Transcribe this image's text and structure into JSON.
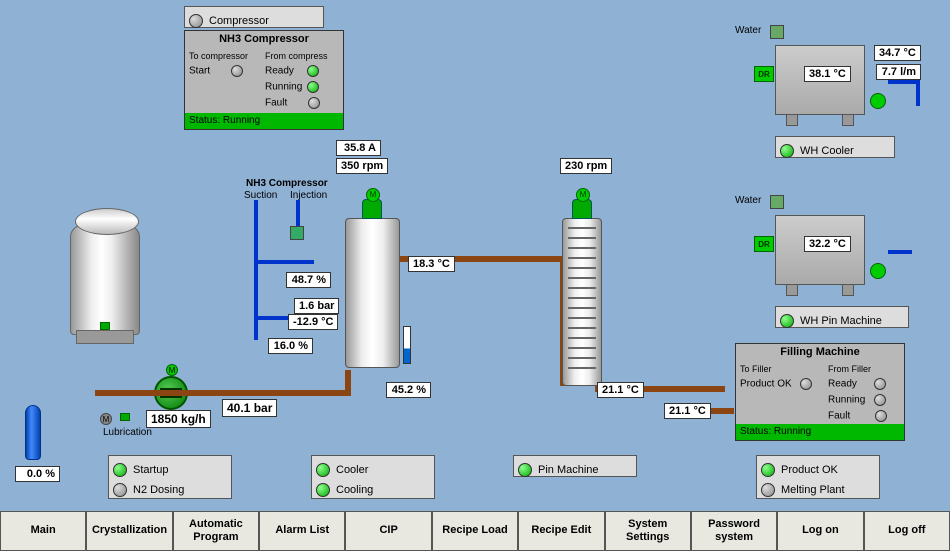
{
  "colors": {
    "bg": "#8fb1d4",
    "brown": "#8b4513",
    "blue": "#0033cc",
    "green_led": "#00b800"
  },
  "compressor_btn": {
    "label": "Compressor"
  },
  "nh3_panel": {
    "title": "NH3 Compressor",
    "left_header": "To compressor",
    "right_header": "From compress",
    "start": "Start",
    "ready": "Ready",
    "running": "Running",
    "fault": "Fault",
    "status": "Status: Running"
  },
  "nh3_conn": {
    "title": "NH3 Compressor",
    "suction": "Suction",
    "injection": "Injection"
  },
  "readouts": {
    "r_358A": "35.8 A",
    "r_350rpm": "350 rpm",
    "r_230rpm": "230 rpm",
    "r_487pct": "48.7 %",
    "r_16bar": "1.6 bar",
    "r_n129c": "-12.9 °C",
    "r_160pct": "16.0 %",
    "r_183c": "18.3 °C",
    "r_452pct": "45.2 %",
    "r_211c_a": "21.1 °C",
    "r_211c_b": "21.1 °C",
    "r_401bar": "40.1 bar",
    "r_1850kgh": "1850 kg/h",
    "r_00pct": "0.0  %",
    "r_381c": "38.1 °C",
    "r_347c": "34.7 °C",
    "r_77lm": "7.7 l/m",
    "r_322c": "32.2 °C"
  },
  "labels": {
    "lubrication": "Lubrication",
    "water1": "Water",
    "water2": "Water",
    "wh_cooler": "WH Cooler",
    "wh_pin": "WH Pin Machine",
    "dr": "DR"
  },
  "filling_panel": {
    "title": "Filling Machine",
    "left_header": "To Filler",
    "right_header": "From Filler",
    "product_ok": "Product OK",
    "ready": "Ready",
    "running": "Running",
    "fault": "Fault",
    "status": "Status: Running"
  },
  "btns": {
    "startup": "Startup",
    "n2": "N2 Dosing",
    "cooler": "Cooler",
    "cooling": "Cooling",
    "pin": "Pin Machine",
    "product_ok": "Product OK",
    "melting": "Melting Plant"
  },
  "nav": [
    "Main",
    "Crystallization",
    "Automatic\nProgram",
    "Alarm List",
    "CIP",
    "Recipe Load",
    "Recipe Edit",
    "System\nSettings",
    "Password\nsystem",
    "Log on",
    "Log off"
  ]
}
